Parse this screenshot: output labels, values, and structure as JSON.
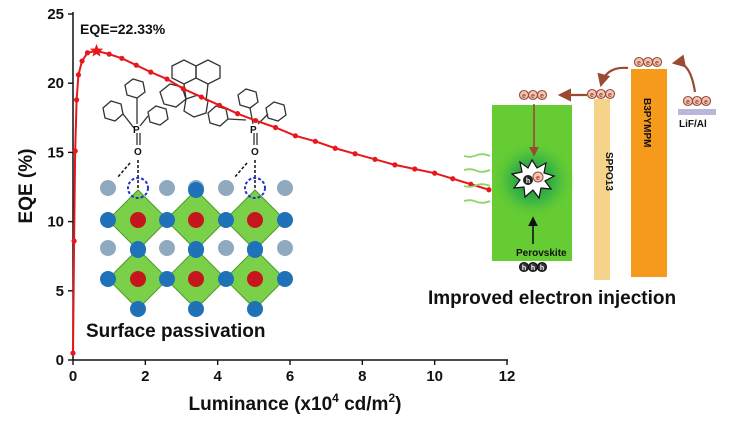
{
  "chart_data": {
    "type": "line",
    "xlabel": "Luminance (x10",
    "xlabel_sup": "4",
    "xlabel_mid": " cd/m",
    "xlabel_sup2": "2",
    "xlabel_end": ")",
    "ylabel": "EQE (%)",
    "xlim": [
      0,
      12
    ],
    "ylim": [
      0,
      25
    ],
    "x_ticks": [
      "0",
      "2",
      "4",
      "6",
      "8",
      "10",
      "12"
    ],
    "y_ticks": [
      "0",
      "5",
      "10",
      "15",
      "20",
      "25"
    ],
    "x_tick_values": [
      0,
      2,
      4,
      6,
      8,
      10,
      12
    ],
    "y_tick_values": [
      0,
      5,
      10,
      15,
      20,
      25
    ],
    "line_color": "#e8171b",
    "series": [
      {
        "x": [
          0.0,
          0.03,
          0.06,
          0.1,
          0.15,
          0.25,
          0.4,
          0.65,
          1.0,
          1.35,
          1.75,
          2.15,
          2.6,
          3.05,
          3.55,
          4.05,
          4.55,
          5.05,
          5.6,
          6.15,
          6.7,
          7.25,
          7.8,
          8.35,
          8.9,
          9.45,
          10.0,
          10.5,
          11.0,
          11.5
        ],
        "values": [
          0.5,
          8.6,
          15.1,
          18.8,
          20.6,
          21.6,
          22.2,
          22.33,
          22.1,
          21.8,
          21.3,
          20.8,
          20.3,
          19.6,
          19.0,
          18.4,
          17.8,
          17.3,
          16.8,
          16.2,
          15.8,
          15.3,
          14.9,
          14.5,
          14.1,
          13.8,
          13.5,
          13.1,
          12.7,
          12.3
        ]
      }
    ],
    "peak": {
      "x": 0.65,
      "y": 22.33
    },
    "annotation": "EQE=22.33%"
  },
  "inset_left": {
    "label": "Surface passivation",
    "atom_p": "P",
    "atom_o": "O"
  },
  "inset_right": {
    "label": "Improved electron injection",
    "layers": {
      "perovskite": "Perovskite",
      "sppo13": "SPPO13",
      "b3pypm": "B3PYMPM",
      "cathode": "LiF/Al"
    },
    "electron_symbol": "e",
    "hole_symbol": "h",
    "colors": {
      "perovskite": "#66cc33",
      "sppo13": "#f5d38a",
      "b3pypm": "#f59a1a",
      "cathode": "#b9b7dc",
      "arrow": "#9a4a32",
      "octahedron": "#7bd04a",
      "node_blue": "#1f72b8",
      "node_red": "#c4161c",
      "node_grey": "#8fa9bf"
    }
  }
}
